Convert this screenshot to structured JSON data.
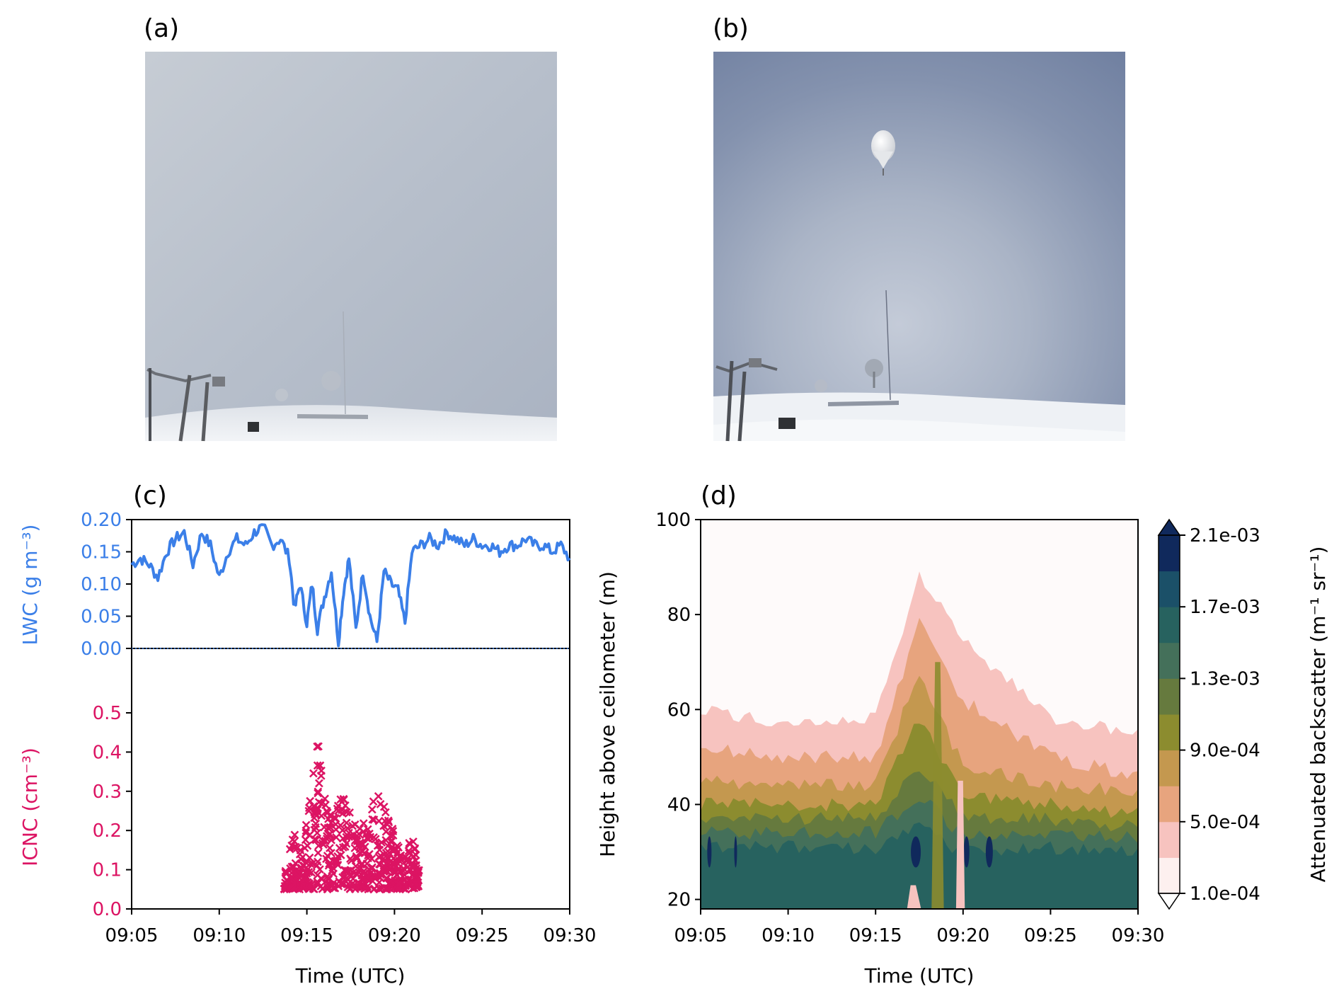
{
  "panels": {
    "a": {
      "label": "(a)"
    },
    "b": {
      "label": "(b)"
    },
    "c": {
      "label": "(c)"
    },
    "d": {
      "label": "(d)"
    }
  },
  "colors": {
    "lwc": "#3b7fe8",
    "icnc": "#dc1463"
  },
  "chart_data": [
    {
      "id": "c-top",
      "type": "line",
      "ylabel": "LWC (g m⁻³)",
      "ylim": [
        0,
        0.2
      ],
      "yticks": [
        "0.00",
        "0.05",
        "0.10",
        "0.15",
        "0.20"
      ],
      "x_start": "09:05",
      "x_end": "09:30",
      "reference_line": 0.0,
      "series": [
        {
          "values_by_minute": [
            [
              "09:05",
              0.13
            ],
            [
              "09:05.5",
              0.14
            ],
            [
              "09:06",
              0.13
            ],
            [
              "09:06.5",
              0.11
            ],
            [
              "09:07",
              0.15
            ],
            [
              "09:07.5",
              0.17
            ],
            [
              "09:08",
              0.18
            ],
            [
              "09:08.5",
              0.13
            ],
            [
              "09:09",
              0.18
            ],
            [
              "09:09.5",
              0.16
            ],
            [
              "09:10",
              0.11
            ],
            [
              "09:10.5",
              0.15
            ],
            [
              "09:11",
              0.17
            ],
            [
              "09:11.5",
              0.16
            ],
            [
              "09:12",
              0.18
            ],
            [
              "09:12.5",
              0.19
            ],
            [
              "09:13",
              0.16
            ],
            [
              "09:13.5",
              0.17
            ],
            [
              "09:14",
              0.14
            ],
            [
              "09:14.3",
              0.06
            ],
            [
              "09:14.6",
              0.1
            ],
            [
              "09:15",
              0.04
            ],
            [
              "09:15.3",
              0.1
            ],
            [
              "09:15.6",
              0.03
            ],
            [
              "09:16",
              0.08
            ],
            [
              "09:16.4",
              0.12
            ],
            [
              "09:16.8",
              0.01
            ],
            [
              "09:17.1",
              0.09
            ],
            [
              "09:17.4",
              0.14
            ],
            [
              "09:17.8",
              0.03
            ],
            [
              "09:18.2",
              0.12
            ],
            [
              "09:18.6",
              0.05
            ],
            [
              "09:19",
              0.01
            ],
            [
              "09:19.4",
              0.12
            ],
            [
              "09:19.8",
              0.1
            ],
            [
              "09:20.2",
              0.09
            ],
            [
              "09:20.6",
              0.04
            ],
            [
              "09:21",
              0.15
            ],
            [
              "09:21.5",
              0.16
            ],
            [
              "09:22",
              0.17
            ],
            [
              "09:22.5",
              0.16
            ],
            [
              "09:23",
              0.18
            ],
            [
              "09:23.5",
              0.17
            ],
            [
              "09:24",
              0.16
            ],
            [
              "09:24.5",
              0.17
            ],
            [
              "09:25",
              0.16
            ],
            [
              "09:25.5",
              0.16
            ],
            [
              "09:26",
              0.15
            ],
            [
              "09:26.5",
              0.16
            ],
            [
              "09:27",
              0.16
            ],
            [
              "09:27.5",
              0.17
            ],
            [
              "09:28",
              0.16
            ],
            [
              "09:28.5",
              0.16
            ],
            [
              "09:29",
              0.15
            ],
            [
              "09:29.5",
              0.16
            ],
            [
              "09:30",
              0.14
            ]
          ]
        }
      ]
    },
    {
      "id": "c-bottom",
      "type": "scatter",
      "ylabel": "ICNC (cm⁻³)",
      "xlabel": "Time (UTC)",
      "ylim": [
        0,
        0.5
      ],
      "yticks": [
        "0.0",
        "0.1",
        "0.2",
        "0.3",
        "0.4",
        "0.5"
      ],
      "xticks": [
        "09:05",
        "09:10",
        "09:15",
        "09:20",
        "09:25",
        "09:30"
      ],
      "marker": "x",
      "active_interval": [
        "09:13.7",
        "09:21.4"
      ],
      "envelope": [
        [
          "09:13.8",
          0.12
        ],
        [
          "09:14.3",
          0.2
        ],
        [
          "09:14.8",
          0.15
        ],
        [
          "09:15.3",
          0.36
        ],
        [
          "09:15.6",
          0.47
        ],
        [
          "09:16",
          0.3
        ],
        [
          "09:16.5",
          0.25
        ],
        [
          "09:17",
          0.3
        ],
        [
          "09:17.5",
          0.25
        ],
        [
          "09:18",
          0.22
        ],
        [
          "09:18.5",
          0.26
        ],
        [
          "09:19",
          0.32
        ],
        [
          "09:19.5",
          0.27
        ],
        [
          "09:20",
          0.2
        ],
        [
          "09:20.5",
          0.12
        ],
        [
          "09:21",
          0.2
        ],
        [
          "09:21.3",
          0.12
        ]
      ]
    },
    {
      "id": "d",
      "type": "heatmap",
      "xlabel": "Time (UTC)",
      "ylabel": "Height above ceilometer (m)",
      "ylim": [
        18,
        100
      ],
      "yticks": [
        "20",
        "40",
        "60",
        "80",
        "100"
      ],
      "xticks": [
        "09:05",
        "09:10",
        "09:15",
        "09:20",
        "09:25",
        "09:30"
      ],
      "colorbar": {
        "label": "Attenuated backscatter (m⁻¹ sr⁻¹)",
        "ticks": [
          "1.0e-04",
          "5.0e-04",
          "9.0e-04",
          "1.3e-03",
          "1.7e-03",
          "2.1e-03"
        ],
        "levels": [
          "#fdf0ef",
          "#f7c3bf",
          "#e7a47e",
          "#c4984f",
          "#8c8c2f",
          "#667a3e",
          "#44705a",
          "#27625f",
          "#1b5068",
          "#10295c"
        ],
        "extend": "both"
      },
      "layer_tops_by_time": [
        {
          "time": "09:05",
          "tops": [
            60,
            52,
            45,
            40,
            37,
            34,
            31
          ]
        },
        {
          "time": "09:10",
          "tops": [
            57,
            50,
            44,
            40,
            37,
            34,
            31
          ]
        },
        {
          "time": "09:15",
          "tops": [
            58,
            50,
            44,
            40,
            37,
            34,
            31
          ]
        },
        {
          "time": "09:17.5",
          "tops": [
            88,
            78,
            68,
            58,
            48,
            42,
            35
          ]
        },
        {
          "time": "09:20",
          "tops": [
            75,
            62,
            48,
            42,
            37,
            33,
            30
          ]
        },
        {
          "time": "09:25",
          "tops": [
            58,
            50,
            44,
            40,
            37,
            34,
            31
          ]
        },
        {
          "time": "09:30",
          "tops": [
            55,
            46,
            43,
            38,
            35,
            33,
            30
          ]
        }
      ]
    }
  ]
}
